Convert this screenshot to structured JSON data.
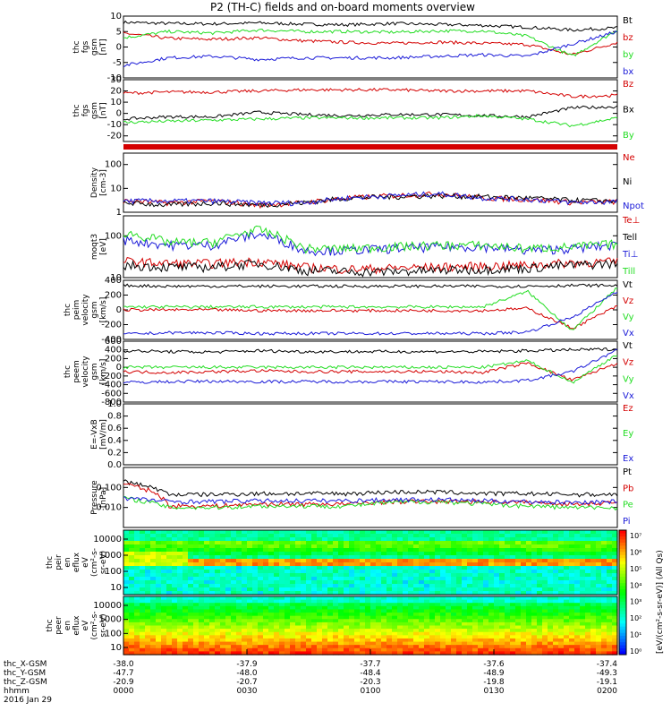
{
  "title": "P2 (TH-C) fields and on-board moments overview",
  "colors": {
    "black": "#000000",
    "red": "#d40000",
    "green": "#22dd22",
    "blue": "#1a1ad8"
  },
  "chart_data": [
    {
      "type": "line",
      "ylabel": [
        "thc",
        "fgs",
        "gsm",
        "[nT]"
      ],
      "ylim": [
        -10,
        10
      ],
      "ticks": [
        "10",
        "5",
        "0",
        "-5",
        "-10"
      ],
      "series": [
        {
          "name": "Bt",
          "color": "black",
          "values": [
            8,
            7.6,
            7.5,
            7.8,
            7.4,
            7.2,
            7.6,
            7.3,
            7.0,
            6.4,
            5.5,
            6.2
          ]
        },
        {
          "name": "bz",
          "color": "red",
          "values": [
            4.5,
            2.8,
            2.5,
            3,
            2,
            1.5,
            1.2,
            1.6,
            1.2,
            0.8,
            -2.5,
            1.5
          ]
        },
        {
          "name": "by",
          "color": "green",
          "values": [
            3,
            5,
            4.5,
            5.5,
            5,
            5,
            4.8,
            5.2,
            5.2,
            3.5,
            -3,
            5.5
          ]
        },
        {
          "name": "bx",
          "color": "blue",
          "values": [
            -6,
            -3.5,
            -3,
            -4,
            -3.5,
            -3.5,
            -3.5,
            -3,
            -2.5,
            -3,
            1,
            5
          ]
        }
      ]
    },
    {
      "type": "line",
      "ylabel": [
        "thc",
        "fgs",
        "gsm",
        "[nT]"
      ],
      "ylim": [
        -25,
        30
      ],
      "ticks": [
        "30",
        "20",
        "10",
        "0",
        "-10",
        "-20"
      ],
      "series": [
        {
          "name": "Bz",
          "color": "red",
          "values": [
            18,
            19,
            19,
            20,
            21,
            21,
            21,
            20,
            20,
            20,
            15,
            16
          ]
        },
        {
          "name": "Bx",
          "color": "black",
          "values": [
            -5,
            -3,
            -3,
            1,
            -1,
            -2,
            -1,
            -1,
            -2,
            -3,
            5,
            6
          ]
        },
        {
          "name": "By",
          "color": "green",
          "values": [
            -8,
            -7,
            -6,
            -5,
            -4,
            -4,
            -4,
            -4,
            -2,
            -5,
            -11,
            -4
          ]
        }
      ]
    },
    {
      "type": "line",
      "ylabel": [
        "Density",
        "[cm-3]"
      ],
      "ylim": [
        1,
        300
      ],
      "scale": "log",
      "ticks": [
        "100",
        "10",
        "1"
      ],
      "series": [
        {
          "name": "Ne",
          "color": "red",
          "values": [
            3,
            2.5,
            3,
            2,
            2.5,
            4,
            5,
            6,
            4,
            3.5,
            2.6,
            2.8
          ]
        },
        {
          "name": "Ni",
          "color": "black",
          "values": [
            2.5,
            2,
            2.5,
            2,
            2.5,
            4,
            4.5,
            5,
            4.5,
            4,
            3.2,
            3
          ]
        },
        {
          "name": "Npot",
          "color": "blue",
          "values": [
            3,
            3,
            3,
            2.5,
            2.5,
            4,
            5,
            6,
            4,
            3.5,
            2.6,
            2.8
          ]
        }
      ]
    },
    {
      "type": "line",
      "ylabel": [
        "moqt3",
        "[eV]"
      ],
      "ylim": [
        10,
        300
      ],
      "scale": "log",
      "ticks": [
        "100",
        "10"
      ],
      "series": [
        {
          "name": "Te⊥",
          "color": "red",
          "values": [
            25,
            22,
            22,
            25,
            18,
            16,
            17,
            18,
            19,
            20,
            23,
            24
          ]
        },
        {
          "name": "Tell",
          "color": "black",
          "values": [
            20,
            18,
            18,
            22,
            15,
            14,
            14,
            15,
            16,
            17,
            20,
            22
          ]
        },
        {
          "name": "Ti⊥",
          "color": "blue",
          "values": [
            80,
            60,
            60,
            110,
            45,
            45,
            50,
            55,
            55,
            45,
            50,
            60
          ]
        },
        {
          "name": "Till",
          "color": "green",
          "values": [
            120,
            70,
            70,
            140,
            50,
            50,
            55,
            60,
            60,
            50,
            55,
            65
          ]
        }
      ]
    },
    {
      "type": "line",
      "ylabel": [
        "thc",
        "peim",
        "velocity",
        "gsm",
        "[km/s]"
      ],
      "ylim": [
        -400,
        400
      ],
      "ticks": [
        "400",
        "200",
        "0",
        "-200",
        "-400"
      ],
      "series": [
        {
          "name": "Vt",
          "color": "black",
          "values": [
            330,
            320,
            320,
            320,
            320,
            320,
            320,
            320,
            320,
            320,
            330,
            330
          ]
        },
        {
          "name": "Vz",
          "color": "red",
          "values": [
            0,
            0,
            0,
            -10,
            -10,
            -10,
            -10,
            -10,
            -10,
            20,
            -250,
            50
          ]
        },
        {
          "name": "Vy",
          "color": "green",
          "values": [
            40,
            40,
            40,
            40,
            40,
            40,
            40,
            40,
            40,
            250,
            -280,
            300
          ]
        },
        {
          "name": "Vx",
          "color": "blue",
          "values": [
            -330,
            -310,
            -310,
            -320,
            -320,
            -320,
            -320,
            -320,
            -320,
            -300,
            -100,
            250
          ]
        }
      ]
    },
    {
      "type": "line",
      "ylabel": [
        "thc",
        "peem",
        "velocity",
        "gsm",
        "[km/s]"
      ],
      "ylim": [
        -800,
        600
      ],
      "ticks": [
        "600",
        "400",
        "200",
        "0",
        "-200",
        "-400",
        "-600",
        "-800"
      ],
      "series": [
        {
          "name": "Vt",
          "color": "black",
          "values": [
            380,
            360,
            350,
            380,
            360,
            360,
            360,
            360,
            360,
            380,
            400,
            420
          ]
        },
        {
          "name": "Vz",
          "color": "red",
          "values": [
            -100,
            -120,
            -100,
            -80,
            -100,
            -100,
            -100,
            -100,
            -120,
            100,
            -300,
            100
          ]
        },
        {
          "name": "Vy",
          "color": "green",
          "values": [
            0,
            0,
            0,
            0,
            0,
            0,
            0,
            0,
            0,
            150,
            -350,
            300
          ]
        },
        {
          "name": "Vx",
          "color": "blue",
          "values": [
            -350,
            -330,
            -320,
            -330,
            -330,
            -330,
            -330,
            -330,
            -340,
            -300,
            -100,
            400
          ]
        }
      ]
    },
    {
      "type": "line",
      "ylabel": [
        "E=-VxB",
        "[mV/m]"
      ],
      "ylim": [
        0,
        1
      ],
      "ticks": [
        "1.0",
        "0.8",
        "0.6",
        "0.4",
        "0.2",
        "0.0"
      ],
      "series": [
        {
          "name": "Ez",
          "color": "red",
          "values": []
        },
        {
          "name": "Ey",
          "color": "green",
          "values": []
        },
        {
          "name": "Ex",
          "color": "blue",
          "values": []
        }
      ]
    },
    {
      "type": "line",
      "ylabel": [
        "Pressure",
        "[nPa]"
      ],
      "ylim": [
        0.001,
        1
      ],
      "scale": "log",
      "ticks": [
        "0.100",
        "0.010"
      ],
      "series": [
        {
          "name": "Pt",
          "color": "black",
          "values": [
            0.2,
            0.045,
            0.045,
            0.05,
            0.05,
            0.05,
            0.06,
            0.06,
            0.05,
            0.05,
            0.045,
            0.045
          ]
        },
        {
          "name": "Pb",
          "color": "red",
          "values": [
            0.15,
            0.012,
            0.012,
            0.015,
            0.015,
            0.015,
            0.02,
            0.02,
            0.02,
            0.018,
            0.015,
            0.018
          ]
        },
        {
          "name": "Pe",
          "color": "green",
          "values": [
            0.03,
            0.01,
            0.01,
            0.012,
            0.012,
            0.012,
            0.018,
            0.02,
            0.015,
            0.012,
            0.01,
            0.01
          ]
        },
        {
          "name": "Pi",
          "color": "blue",
          "values": [
            0.03,
            0.02,
            0.02,
            0.022,
            0.022,
            0.022,
            0.025,
            0.025,
            0.022,
            0.02,
            0.018,
            0.02
          ]
        }
      ]
    },
    {
      "type": "heatmap",
      "ylabel": [
        "thc",
        "peir",
        "en",
        "eflux",
        "eV",
        "(cm²-s-",
        "sr-eV)"
      ],
      "scale": "log",
      "ticks": [
        "10000",
        "1000",
        "100",
        "10"
      ]
    },
    {
      "type": "heatmap",
      "ylabel": [
        "thc",
        "peer",
        "en",
        "eflux",
        "eV",
        "(cm²-s-",
        "sr-eV)"
      ],
      "scale": "log",
      "ticks": [
        "10000",
        "1000",
        "100",
        "10"
      ]
    }
  ],
  "colorbar": {
    "title": "[eV/(cm²-s-sr-eV)] (All Qs)",
    "ticks": [
      "10⁷",
      "10⁶",
      "10⁵",
      "10⁴",
      "10³",
      "10²",
      "10¹",
      "10⁰"
    ]
  },
  "xaxis": {
    "rows": [
      {
        "label": "thc_X-GSM",
        "values": [
          "-38.0",
          "-37.9",
          "-37.7",
          "-37.6",
          "-37.4"
        ]
      },
      {
        "label": "thc_Y-GSM",
        "values": [
          "-47.7",
          "-48.0",
          "-48.4",
          "-48.9",
          "-49.3"
        ]
      },
      {
        "label": "thc_Z-GSM",
        "values": [
          "-20.9",
          "-20.7",
          "-20.3",
          "-19.8",
          "-19.1"
        ]
      },
      {
        "label": "hhmm",
        "values": [
          "0000",
          "0030",
          "0100",
          "0130",
          "0200"
        ]
      }
    ],
    "date": "2016 Jan 29"
  }
}
